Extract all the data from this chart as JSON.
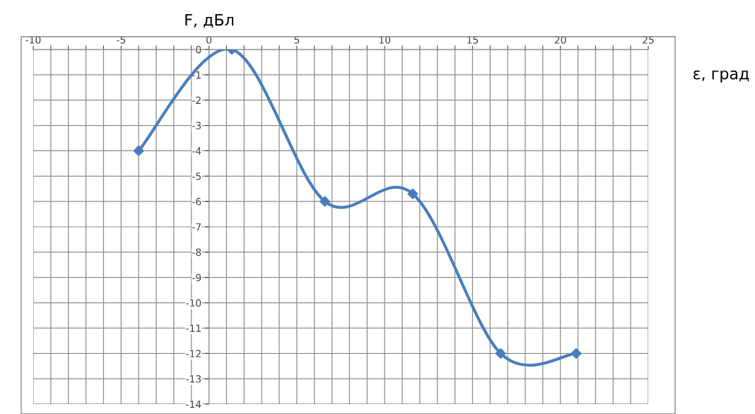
{
  "chart_data": {
    "type": "line",
    "xlabel": "ε, град",
    "ylabel": "F, дБл",
    "x": [
      -4,
      1.3,
      6.6,
      11.6,
      16.6,
      20.9
    ],
    "series": [
      {
        "color": "#4a7ebb",
        "values": [
          -4,
          0,
          -6,
          -5.7,
          -12,
          -12
        ]
      }
    ],
    "marker": "diamond",
    "line_style": "solid",
    "grid": true,
    "xlim": [
      -10,
      25
    ],
    "ylim": [
      -14,
      0
    ],
    "xticks": [
      -10,
      {
        "value": -9,
        "label": null
      },
      {
        "value": -8,
        "label": null
      },
      {
        "value": -7,
        "label": null
      },
      {
        "value": -6,
        "label": null
      },
      -5,
      {
        "value": -4,
        "label": null
      },
      {
        "value": -3,
        "label": null
      },
      {
        "value": -2,
        "label": null
      },
      {
        "value": -1,
        "label": null
      },
      0,
      {
        "value": 1,
        "label": null
      },
      {
        "value": 2,
        "label": null
      },
      {
        "value": 3,
        "label": null
      },
      {
        "value": 4,
        "label": null
      },
      5,
      {
        "value": 6,
        "label": null
      },
      {
        "value": 7,
        "label": null
      },
      {
        "value": 8,
        "label": null
      },
      {
        "value": 9,
        "label": null
      },
      10,
      {
        "value": 11,
        "label": null
      },
      {
        "value": 12,
        "label": null
      },
      {
        "value": 13,
        "label": null
      },
      {
        "value": 14,
        "label": null
      },
      15,
      {
        "value": 16,
        "label": null
      },
      {
        "value": 17,
        "label": null
      },
      {
        "value": 18,
        "label": null
      },
      {
        "value": 19,
        "label": null
      },
      20,
      {
        "value": 21,
        "label": null
      },
      {
        "value": 22,
        "label": null
      },
      {
        "value": 23,
        "label": null
      },
      {
        "value": 24,
        "label": null
      },
      25
    ],
    "yticks": [
      0,
      -1,
      -2,
      -3,
      -4,
      -5,
      -6,
      -7,
      -8,
      -9,
      -10,
      -11,
      -12,
      -13,
      -14
    ]
  }
}
